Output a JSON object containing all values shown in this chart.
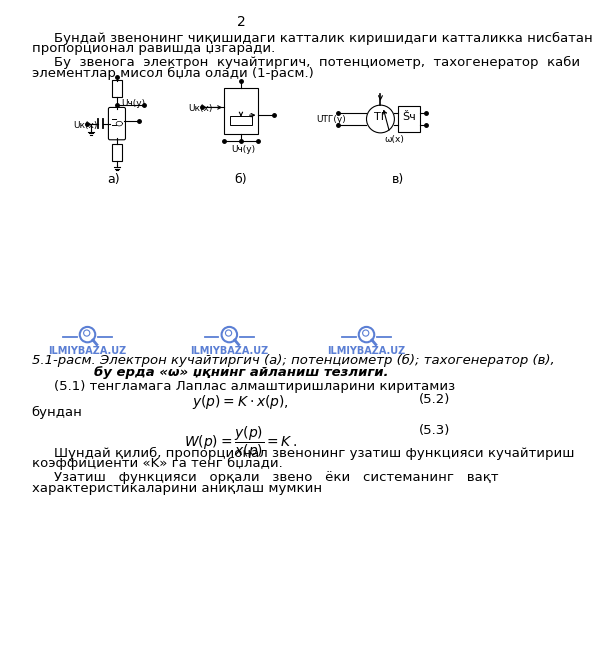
{
  "page_number": "2",
  "bg_color": "#ffffff",
  "watermark_color": "#5B7FD4",
  "caption_line1": "5.1-расм. Электрон кучайтиргич (а); потенциометр (б); тахогенератор (в),",
  "caption_line2": "бу ерда «ω» џқнинг айланиш тезлиги.",
  "intro_eq": "(5.1) тенгламага Лаплас алмаштиришларини киритамиз",
  "eq1_num": "(5.2)",
  "eq2_text": "бундан",
  "eq2_num": "(5.3)",
  "p3l1": "Шундай қилиб, пропорционал звенонинг узатиш функцияси кучайтириш",
  "p3l2": "коэффициенти «K» га тенг бџлади.",
  "p4l1": "Узатиш   функцияси   орқали   звено   ёки   системанинг   вақт",
  "p4l2": "характеристикаларини аниқлаш мумкин",
  "p1l1": "Бундай звенонинг чиқишидаги катталик киришидаги катталикка нисбатан",
  "p1l2": "пропорционал равишда џзгаради.",
  "p2l1": "Бу  звенога  электрон  кучайтиргич,  потенциометр,  тахогенератор  каби",
  "p2l2": "элементлар мисол бџла олади (1-расм.)"
}
